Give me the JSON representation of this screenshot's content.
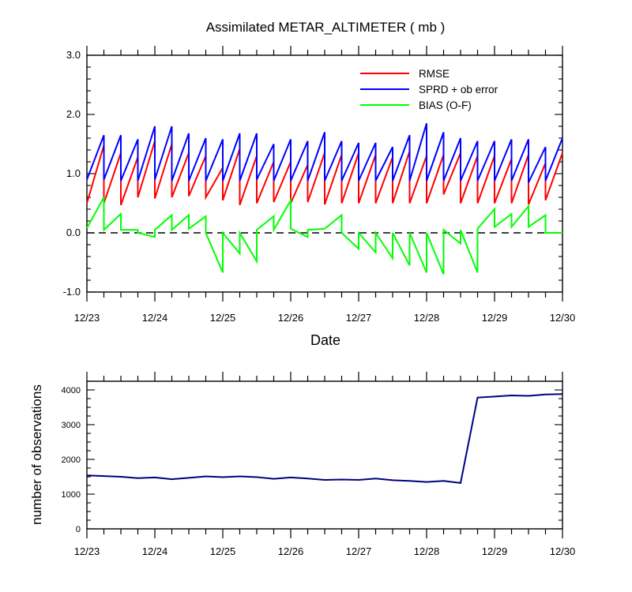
{
  "chart_data": [
    {
      "type": "line",
      "title": "Assimilated METAR_ALTIMETER ( mb )",
      "xlabel": "Date",
      "ylabel": "",
      "x_tick_labels": [
        "12/23",
        "12/24",
        "12/25",
        "12/26",
        "12/27",
        "12/28",
        "12/29",
        "12/30"
      ],
      "y_tick_labels": [
        "-1.0",
        "0.0",
        "1.0",
        "2.0",
        "3.0"
      ],
      "ylim": [
        -1.0,
        3.0
      ],
      "xlim_days": [
        0,
        7
      ],
      "reference_line": {
        "y": 0,
        "style": "dashed",
        "color": "#000000"
      },
      "legend_placement": "top-right",
      "series": [
        {
          "name": "RMSE",
          "color": "#ff0000",
          "x": [
            0,
            0.25,
            0.25,
            0.5,
            0.5,
            0.75,
            0.75,
            1.0,
            1.0,
            1.25,
            1.25,
            1.5,
            1.5,
            1.75,
            1.75,
            2.0,
            2.0,
            2.25,
            2.25,
            2.5,
            2.5,
            2.75,
            2.75,
            3.0,
            3.0,
            3.25,
            3.25,
            3.5,
            3.5,
            3.75,
            3.75,
            4.0,
            4.0,
            4.25,
            4.25,
            4.5,
            4.5,
            4.75,
            4.75,
            5.0,
            5.0,
            5.25,
            5.25,
            5.5,
            5.5,
            5.75,
            5.75,
            6.0,
            6.0,
            6.25,
            6.25,
            6.5,
            6.5,
            6.75,
            6.75,
            7.0
          ],
          "y": [
            0.5,
            1.48,
            0.5,
            1.35,
            0.47,
            1.28,
            0.6,
            1.55,
            0.58,
            1.5,
            0.6,
            1.35,
            0.62,
            1.3,
            0.6,
            1.1,
            0.55,
            1.42,
            0.47,
            1.3,
            0.5,
            1.2,
            0.52,
            1.2,
            0.5,
            1.15,
            0.52,
            1.35,
            0.48,
            1.32,
            0.5,
            1.35,
            0.5,
            1.32,
            0.5,
            1.28,
            0.5,
            1.38,
            0.5,
            1.3,
            0.5,
            1.32,
            0.65,
            1.35,
            0.5,
            1.3,
            0.5,
            1.3,
            0.5,
            1.25,
            0.5,
            1.32,
            0.48,
            1.18,
            0.55,
            1.35
          ]
        },
        {
          "name": "SPRD + ob error",
          "color": "#0000ff",
          "x": [
            0,
            0.25,
            0.25,
            0.5,
            0.5,
            0.75,
            0.75,
            1.0,
            1.0,
            1.25,
            1.25,
            1.5,
            1.5,
            1.75,
            1.75,
            2.0,
            2.0,
            2.25,
            2.25,
            2.5,
            2.5,
            2.75,
            2.75,
            3.0,
            3.0,
            3.25,
            3.25,
            3.5,
            3.5,
            3.75,
            3.75,
            4.0,
            4.0,
            4.25,
            4.25,
            4.5,
            4.5,
            4.75,
            4.75,
            5.0,
            5.0,
            5.25,
            5.25,
            5.5,
            5.5,
            5.75,
            5.75,
            6.0,
            6.0,
            6.25,
            6.25,
            6.5,
            6.5,
            6.75,
            6.75,
            7.0
          ],
          "y": [
            0.9,
            1.65,
            0.9,
            1.65,
            0.88,
            1.58,
            0.88,
            1.8,
            0.9,
            1.8,
            0.88,
            1.68,
            0.88,
            1.6,
            0.88,
            1.58,
            0.88,
            1.68,
            0.88,
            1.68,
            0.9,
            1.5,
            0.88,
            1.58,
            0.88,
            1.55,
            0.88,
            1.7,
            0.88,
            1.55,
            0.88,
            1.52,
            0.88,
            1.52,
            0.88,
            1.45,
            0.88,
            1.65,
            0.88,
            1.85,
            0.88,
            1.7,
            0.88,
            1.6,
            0.88,
            1.55,
            0.88,
            1.55,
            0.88,
            1.58,
            0.88,
            1.58,
            0.85,
            1.45,
            0.88,
            1.6
          ]
        },
        {
          "name": "BIAS (O-F)",
          "color": "#00ff00",
          "x": [
            0,
            0.25,
            0.25,
            0.5,
            0.5,
            0.75,
            0.75,
            1.0,
            1.0,
            1.25,
            1.25,
            1.5,
            1.5,
            1.75,
            1.75,
            2.0,
            2.0,
            2.25,
            2.25,
            2.5,
            2.5,
            2.75,
            2.75,
            3.0,
            3.0,
            3.25,
            3.25,
            3.5,
            3.5,
            3.75,
            3.75,
            4.0,
            4.0,
            4.25,
            4.25,
            4.5,
            4.5,
            4.75,
            4.75,
            5.0,
            5.0,
            5.25,
            5.25,
            5.5,
            5.5,
            5.75,
            5.75,
            6.0,
            6.0,
            6.25,
            6.25,
            6.5,
            6.5,
            6.75,
            6.75,
            7.0
          ],
          "y": [
            0.08,
            0.6,
            0.05,
            0.32,
            0.05,
            0.05,
            0.0,
            -0.07,
            0.05,
            0.3,
            0.05,
            0.3,
            0.07,
            0.28,
            0.0,
            -0.67,
            0.0,
            -0.35,
            0.0,
            -0.48,
            0.05,
            0.28,
            0.05,
            0.55,
            0.07,
            -0.07,
            0.05,
            0.07,
            0.07,
            0.3,
            0.0,
            -0.27,
            0.0,
            -0.33,
            0.0,
            -0.43,
            0.0,
            -0.55,
            0.0,
            -0.67,
            0.0,
            -0.7,
            0.05,
            -0.18,
            0.05,
            -0.67,
            0.07,
            0.4,
            0.1,
            0.32,
            0.1,
            0.45,
            0.1,
            0.3,
            0.0,
            0.0
          ]
        }
      ]
    },
    {
      "type": "line",
      "title": "",
      "xlabel": "",
      "ylabel": "number of observations",
      "x_tick_labels": [
        "12/23",
        "12/24",
        "12/25",
        "12/26",
        "12/27",
        "12/28",
        "12/29",
        "12/30"
      ],
      "y_tick_labels": [
        "0",
        "1000",
        "2000",
        "3000",
        "4000"
      ],
      "ylim": [
        0,
        4250
      ],
      "xlim_days": [
        0,
        7
      ],
      "series": [
        {
          "color": "#000080",
          "x": [
            0,
            0.25,
            0.5,
            0.75,
            1.0,
            1.25,
            1.5,
            1.75,
            2.0,
            2.25,
            2.5,
            2.75,
            3.0,
            3.25,
            3.5,
            3.75,
            4.0,
            4.25,
            4.5,
            4.75,
            5.0,
            5.25,
            5.5,
            5.75,
            6.0,
            6.25,
            6.5,
            6.75,
            7.0
          ],
          "y": [
            1540,
            1520,
            1500,
            1460,
            1480,
            1430,
            1470,
            1510,
            1490,
            1510,
            1490,
            1440,
            1480,
            1450,
            1410,
            1420,
            1410,
            1450,
            1400,
            1380,
            1350,
            1380,
            1320,
            3780,
            3810,
            3840,
            3830,
            3870,
            3880
          ]
        }
      ]
    }
  ]
}
